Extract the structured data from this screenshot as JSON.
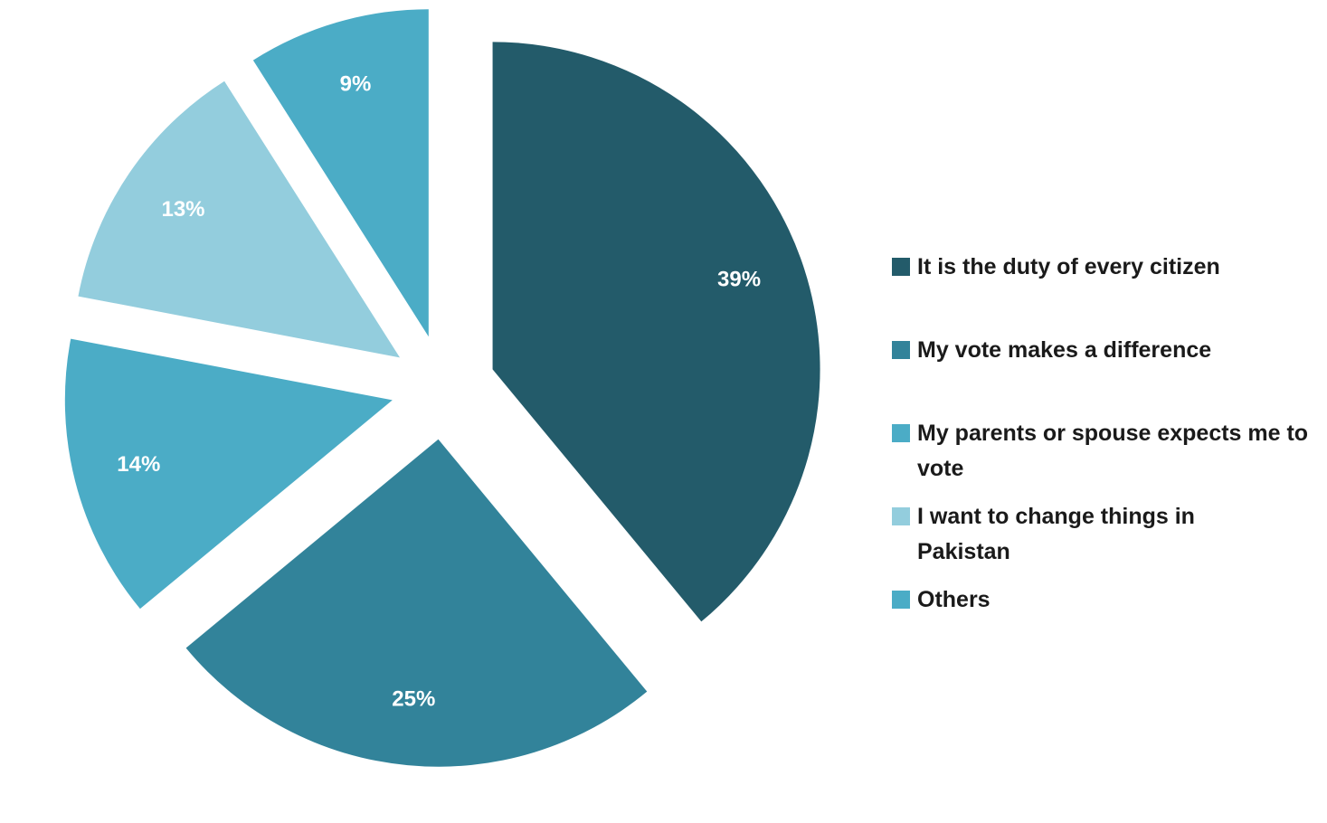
{
  "chart_data": {
    "type": "pie",
    "exploded": true,
    "slices": [
      {
        "label": "It is the duty of every citizen",
        "value": 39,
        "display": "39%",
        "color": "#235B6A"
      },
      {
        "label": "My vote makes a difference",
        "value": 25,
        "display": "25%",
        "color": "#32839A"
      },
      {
        "label": "My parents or spouse expects me to vote",
        "value": 14,
        "display": "14%",
        "color": "#4BACC6"
      },
      {
        "label": "I want to change things in Pakistan",
        "value": 13,
        "display": "13%",
        "color": "#93CDDD"
      },
      {
        "label": "Others",
        "value": 9,
        "display": "9%",
        "color": "#4BACC6"
      }
    ],
    "legend_position": "right",
    "label_color": "#FFFFFF"
  }
}
